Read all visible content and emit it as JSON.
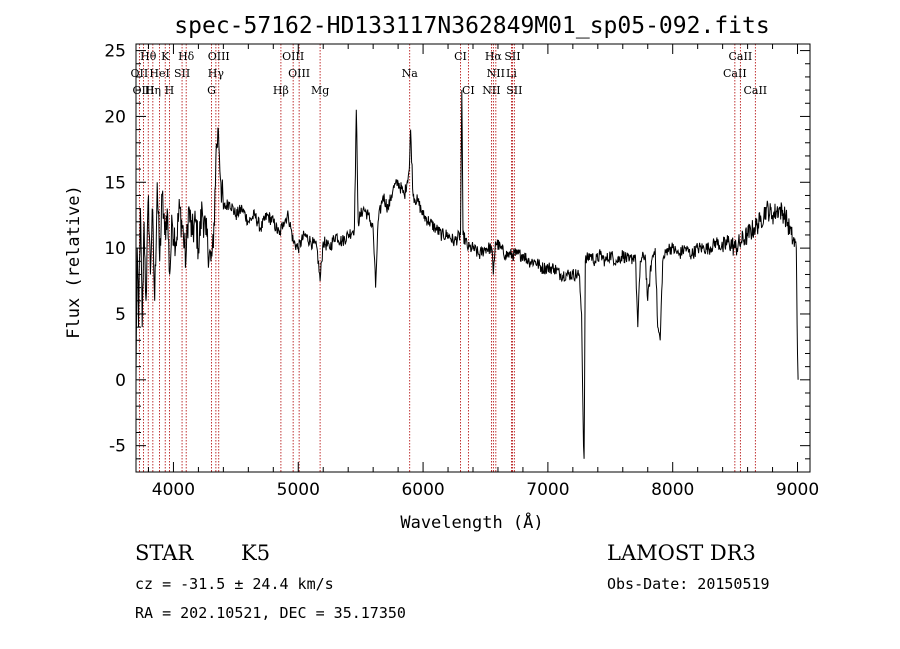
{
  "chart_data": {
    "type": "line",
    "title": "spec-57162-HD133117N362849M01_sp05-092.fits",
    "xlabel": "Wavelength (Å)",
    "ylabel": "Flux (relative)",
    "xlim": [
      3700,
      9100
    ],
    "ylim": [
      -7,
      25.5
    ],
    "xticks": [
      4000,
      5000,
      6000,
      7000,
      8000,
      9000
    ],
    "yticks": [
      -5,
      0,
      5,
      10,
      15,
      20,
      25
    ],
    "series": [
      {
        "name": "flux",
        "anchors": [
          [
            3700,
            0
          ],
          [
            3710,
            10
          ],
          [
            3720,
            4
          ],
          [
            3735,
            13
          ],
          [
            3750,
            4
          ],
          [
            3765,
            12
          ],
          [
            3780,
            6
          ],
          [
            3800,
            14
          ],
          [
            3815,
            8
          ],
          [
            3830,
            13
          ],
          [
            3850,
            6
          ],
          [
            3870,
            15
          ],
          [
            3890,
            9
          ],
          [
            3910,
            14
          ],
          [
            3930,
            11
          ],
          [
            3950,
            13
          ],
          [
            3970,
            8
          ],
          [
            3990,
            12
          ],
          [
            4020,
            10.5
          ],
          [
            4050,
            13
          ],
          [
            4080,
            11
          ],
          [
            4100,
            9
          ],
          [
            4120,
            13
          ],
          [
            4150,
            11
          ],
          [
            4180,
            12
          ],
          [
            4200,
            10
          ],
          [
            4230,
            13
          ],
          [
            4260,
            11
          ],
          [
            4300,
            9
          ],
          [
            4320,
            10
          ],
          [
            4340,
            17
          ],
          [
            4360,
            19
          ],
          [
            4380,
            15
          ],
          [
            4400,
            13
          ],
          [
            4450,
            13.5
          ],
          [
            4500,
            12.5
          ],
          [
            4550,
            13
          ],
          [
            4600,
            12
          ],
          [
            4650,
            12.5
          ],
          [
            4700,
            11.5
          ],
          [
            4750,
            12.5
          ],
          [
            4800,
            12
          ],
          [
            4850,
            11
          ],
          [
            4880,
            12
          ],
          [
            4920,
            12.5
          ],
          [
            4960,
            10.5
          ],
          [
            5000,
            10
          ],
          [
            5050,
            11
          ],
          [
            5100,
            10.5
          ],
          [
            5150,
            10
          ],
          [
            5175,
            7.5
          ],
          [
            5200,
            10.5
          ],
          [
            5250,
            10
          ],
          [
            5300,
            11
          ],
          [
            5350,
            10.5
          ],
          [
            5400,
            11
          ],
          [
            5450,
            11.5
          ],
          [
            5465,
            20.5
          ],
          [
            5480,
            12
          ],
          [
            5520,
            13
          ],
          [
            5560,
            12.5
          ],
          [
            5600,
            11.5
          ],
          [
            5620,
            7
          ],
          [
            5640,
            12
          ],
          [
            5680,
            14
          ],
          [
            5720,
            13
          ],
          [
            5760,
            14.5
          ],
          [
            5800,
            15
          ],
          [
            5850,
            14
          ],
          [
            5890,
            16
          ],
          [
            5900,
            19
          ],
          [
            5920,
            14
          ],
          [
            5960,
            13.5
          ],
          [
            6000,
            12.5
          ],
          [
            6050,
            12
          ],
          [
            6100,
            11.5
          ],
          [
            6150,
            11
          ],
          [
            6200,
            11
          ],
          [
            6250,
            10.5
          ],
          [
            6300,
            11
          ],
          [
            6310,
            22
          ],
          [
            6320,
            11
          ],
          [
            6363,
            10
          ],
          [
            6400,
            10
          ],
          [
            6450,
            9.5
          ],
          [
            6500,
            10
          ],
          [
            6550,
            10
          ],
          [
            6563,
            8
          ],
          [
            6580,
            10.5
          ],
          [
            6620,
            10
          ],
          [
            6660,
            9.5
          ],
          [
            6700,
            9.5
          ],
          [
            6750,
            9.5
          ],
          [
            6800,
            9.5
          ],
          [
            6850,
            9
          ],
          [
            6900,
            9
          ],
          [
            6950,
            8.5
          ],
          [
            7000,
            8.5
          ],
          [
            7050,
            8.5
          ],
          [
            7100,
            8
          ],
          [
            7150,
            8
          ],
          [
            7200,
            8
          ],
          [
            7250,
            8
          ],
          [
            7270,
            5
          ],
          [
            7285,
            -5
          ],
          [
            7290,
            -6
          ],
          [
            7300,
            9
          ],
          [
            7340,
            9.5
          ],
          [
            7380,
            9
          ],
          [
            7420,
            9.5
          ],
          [
            7460,
            9
          ],
          [
            7500,
            9.5
          ],
          [
            7550,
            9
          ],
          [
            7600,
            9.5
          ],
          [
            7650,
            9
          ],
          [
            7700,
            9.5
          ],
          [
            7720,
            4
          ],
          [
            7740,
            9
          ],
          [
            7780,
            9.5
          ],
          [
            7800,
            6
          ],
          [
            7830,
            9
          ],
          [
            7860,
            10
          ],
          [
            7880,
            4
          ],
          [
            7900,
            3
          ],
          [
            7920,
            9
          ],
          [
            7960,
            10
          ],
          [
            8000,
            10
          ],
          [
            8050,
            9.5
          ],
          [
            8100,
            10
          ],
          [
            8150,
            9.5
          ],
          [
            8200,
            10
          ],
          [
            8250,
            10
          ],
          [
            8300,
            10
          ],
          [
            8350,
            10.5
          ],
          [
            8400,
            10
          ],
          [
            8450,
            10.5
          ],
          [
            8500,
            10
          ],
          [
            8550,
            10.5
          ],
          [
            8600,
            11
          ],
          [
            8650,
            11.5
          ],
          [
            8700,
            12
          ],
          [
            8750,
            13
          ],
          [
            8800,
            12.5
          ],
          [
            8850,
            13
          ],
          [
            8900,
            12.5
          ],
          [
            8950,
            11
          ],
          [
            8990,
            10
          ],
          [
            9000,
            2
          ],
          [
            9005,
            0
          ]
        ]
      }
    ],
    "line_markers": [
      {
        "label": "Hθ",
        "x": 3798,
        "row": 0
      },
      {
        "label": "K",
        "x": 3934,
        "row": 0
      },
      {
        "label": "Hδ",
        "x": 4102,
        "row": 0
      },
      {
        "label": "OIII",
        "x": 4363,
        "row": 0
      },
      {
        "label": "OIII",
        "x": 4959,
        "row": 0
      },
      {
        "label": "CI",
        "x": 6300,
        "row": 0
      },
      {
        "label": "Hα",
        "x": 6563,
        "row": 0
      },
      {
        "label": "SII",
        "x": 6716,
        "row": 0
      },
      {
        "label": "CaII",
        "x": 8542,
        "row": 0
      },
      {
        "label": "OII",
        "x": 3727,
        "row": 1
      },
      {
        "label": "HeI",
        "x": 3889,
        "row": 1
      },
      {
        "label": "SII",
        "x": 4069,
        "row": 1
      },
      {
        "label": "Hγ",
        "x": 4340,
        "row": 1
      },
      {
        "label": "OIII",
        "x": 5007,
        "row": 1
      },
      {
        "label": "Na",
        "x": 5893,
        "row": 1
      },
      {
        "label": "NII",
        "x": 6583,
        "row": 1
      },
      {
        "label": "Li",
        "x": 6708,
        "row": 1
      },
      {
        "label": "CaII",
        "x": 8498,
        "row": 1
      },
      {
        "label": "OIII",
        "x": 3760,
        "row": 2
      },
      {
        "label": "Hη",
        "x": 3835,
        "row": 2
      },
      {
        "label": "H",
        "x": 3968,
        "row": 2
      },
      {
        "label": "G",
        "x": 4305,
        "row": 2
      },
      {
        "label": "Hβ",
        "x": 4861,
        "row": 2
      },
      {
        "label": "Mg",
        "x": 5175,
        "row": 2
      },
      {
        "label": "CI",
        "x": 6363,
        "row": 2
      },
      {
        "label": "NII",
        "x": 6548,
        "row": 2
      },
      {
        "label": "SII",
        "x": 6731,
        "row": 2
      },
      {
        "label": "CaII",
        "x": 8662,
        "row": 2
      }
    ]
  },
  "info": {
    "object_class": "STAR",
    "subclass": "K5",
    "survey": "LAMOST DR3",
    "redshift": "cz = -31.5 ± 24.4 km/s",
    "obs_date": "Obs-Date: 20150519",
    "coords": "RA = 202.10521, DEC =  35.17350"
  }
}
